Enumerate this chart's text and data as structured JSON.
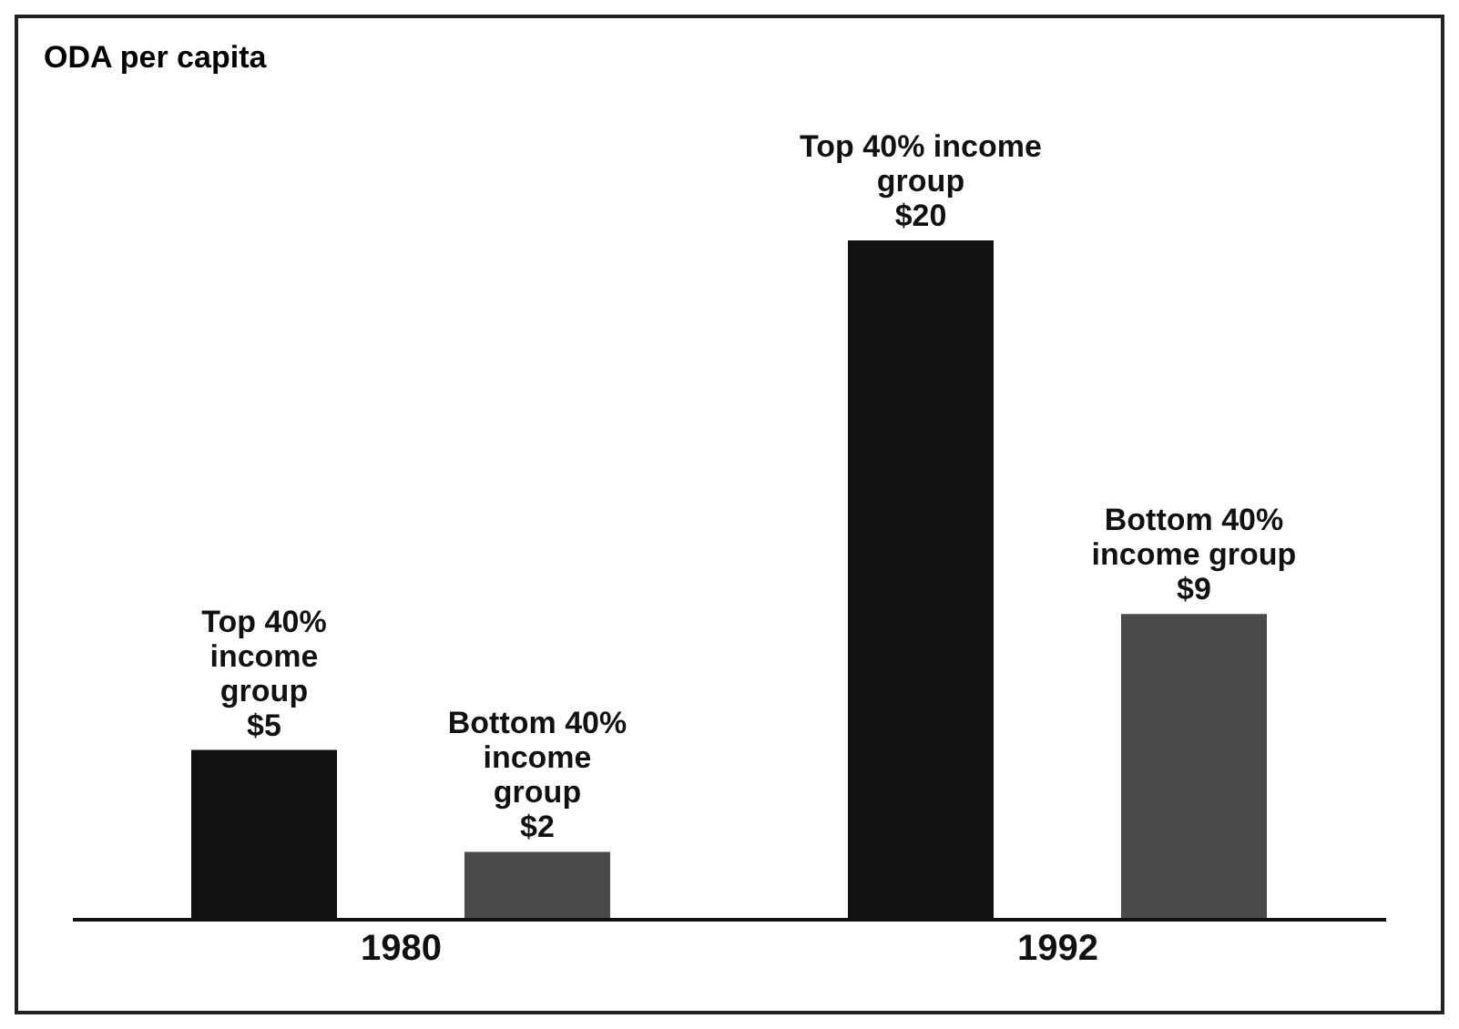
{
  "chart_data": {
    "type": "bar",
    "title": "ODA per capita",
    "categories": [
      "1980",
      "1992"
    ],
    "series": [
      {
        "name": "Top 40% income group",
        "color": "#111111",
        "values": [
          5,
          20
        ],
        "value_labels": [
          "$5",
          "$20"
        ]
      },
      {
        "name": "Bottom 40% income group",
        "color": "#4a4a4a",
        "values": [
          2,
          9
        ],
        "value_labels": [
          "$2",
          "$9"
        ]
      }
    ],
    "grid": false,
    "legend": false
  }
}
